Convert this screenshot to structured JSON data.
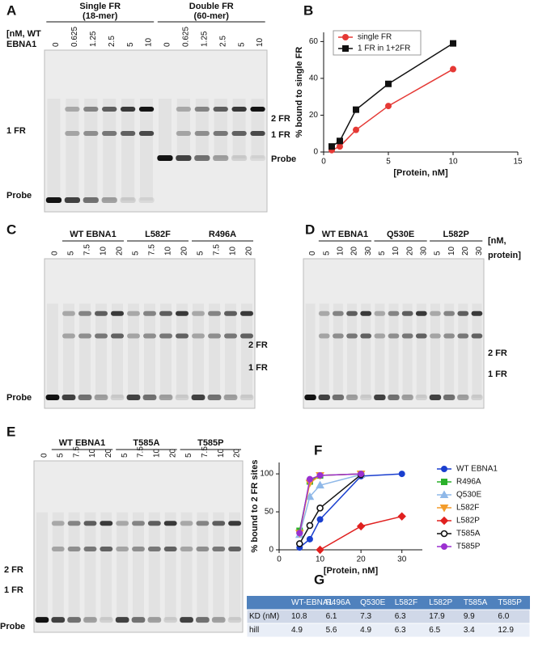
{
  "chart_data": [
    {
      "type": "line",
      "label": "B",
      "x_label": "[Protein, nM]",
      "y_label": "% bound to single FR",
      "xlim": [
        0,
        15
      ],
      "xticks": [
        0,
        5,
        10,
        15
      ],
      "ylim": [
        0,
        65
      ],
      "yticks": [
        0,
        20,
        40,
        60
      ],
      "legend": "upper left",
      "series": [
        {
          "name": "single FR",
          "color": "#e53935",
          "marker": "circle",
          "x": [
            0.625,
            1.25,
            2.5,
            5,
            10
          ],
          "values": [
            1,
            3,
            12,
            25,
            45
          ]
        },
        {
          "name": "1 FR in 1+2FR",
          "color": "#111111",
          "marker": "square",
          "x": [
            0.625,
            1.25,
            2.5,
            5,
            10
          ],
          "values": [
            3,
            6,
            23,
            37,
            59
          ]
        }
      ]
    },
    {
      "type": "line",
      "label": "F",
      "x_label": "[Protein, nM]",
      "y_label": "% bound to 2 FR sites",
      "xlim": [
        0,
        35
      ],
      "xticks": [
        0,
        10,
        20,
        30
      ],
      "ylim": [
        0,
        115
      ],
      "yticks": [
        0,
        50,
        100
      ],
      "legend": "outside right",
      "series": [
        {
          "name": "WT EBNA1",
          "color": "#1a3fcf",
          "marker": "circle",
          "x": [
            5,
            7.5,
            10,
            20,
            30
          ],
          "values": [
            3,
            14,
            40,
            97,
            100
          ]
        },
        {
          "name": "R496A",
          "color": "#2bb12b",
          "marker": "square",
          "x": [
            5,
            7.5,
            10,
            20
          ],
          "values": [
            25,
            90,
            98,
            100
          ]
        },
        {
          "name": "Q530E",
          "color": "#8fb8e8",
          "marker": "triangle",
          "x": [
            5,
            7.5,
            10,
            20
          ],
          "values": [
            20,
            70,
            85,
            99
          ]
        },
        {
          "name": "L582F",
          "color": "#f39c2b",
          "marker": "triangle-down",
          "x": [
            5,
            7.5,
            10,
            20
          ],
          "values": [
            22,
            88,
            98,
            100
          ]
        },
        {
          "name": "L582P",
          "color": "#e0201f",
          "marker": "diamond",
          "x": [
            10,
            20,
            30
          ],
          "values": [
            0,
            31,
            44
          ]
        },
        {
          "name": "T585A",
          "color": "#111111",
          "marker": "open-circle",
          "x": [
            5,
            7.5,
            10,
            20
          ],
          "values": [
            8,
            32,
            55,
            99
          ]
        },
        {
          "name": "T585P",
          "color": "#9b30d0",
          "marker": "circle",
          "x": [
            5,
            7.5,
            10,
            20
          ],
          "values": [
            22,
            93,
            98,
            100
          ]
        }
      ]
    }
  ],
  "gels": [
    {
      "label": "A",
      "groups": [
        {
          "name": "Single FR",
          "note": "(18-mer)"
        },
        {
          "name": "Double FR",
          "note": "(60-mer)"
        }
      ],
      "unit": [
        "[nM, WT",
        "EBNA1"
      ],
      "lanes": [
        "0",
        "0.625",
        "1.25",
        "2.5",
        "5",
        "10",
        "0",
        "0.625",
        "1.25",
        "2.5",
        "5",
        "10"
      ],
      "bands": [
        "1 FR",
        "Probe",
        "2 FR",
        "1 FR",
        "Probe"
      ]
    },
    {
      "label": "C",
      "groups": [
        {
          "name": "WT EBNA1"
        },
        {
          "name": "L582F"
        },
        {
          "name": "R496A"
        }
      ],
      "lanes": [
        "0",
        "5",
        "7.5",
        "10",
        "20",
        "5",
        "7.5",
        "10",
        "20",
        "5",
        "7.5",
        "10",
        "20"
      ],
      "bands": [
        "2 FR",
        "1 FR",
        "Probe"
      ]
    },
    {
      "label": "D",
      "groups": [
        {
          "name": "WT EBNA1"
        },
        {
          "name": "Q530E"
        },
        {
          "name": "L582P"
        }
      ],
      "unit": [
        "[nM,",
        "protein]"
      ],
      "lanes": [
        "0",
        "5",
        "10",
        "20",
        "30",
        "5",
        "10",
        "20",
        "30",
        "5",
        "10",
        "20",
        "30"
      ],
      "bands": [
        "2 FR",
        "1 FR"
      ]
    },
    {
      "label": "E",
      "groups": [
        {
          "name": "WT EBNA1"
        },
        {
          "name": "T585A"
        },
        {
          "name": "T585P"
        }
      ],
      "lanes": [
        "0",
        "5",
        "7.5",
        "10",
        "20",
        "5",
        "7.5",
        "10",
        "20",
        "5",
        "7.5",
        "10",
        "20"
      ],
      "bands": [
        "2 FR",
        "1 FR",
        "Probe"
      ]
    }
  ],
  "table": {
    "label": "G",
    "header": [
      "WT-EBNA1",
      "R496A",
      "Q530E",
      "L582F",
      "L582P",
      "T585A",
      "T585P"
    ],
    "rows": [
      [
        "KD (nM)",
        "10.8",
        "6.1",
        "7.3",
        "6.3",
        "17.9",
        "9.9",
        "6.0"
      ],
      [
        "hill",
        "4.9",
        "5.6",
        "4.9",
        "6.3",
        "6.5",
        "3.4",
        "12.9"
      ]
    ]
  }
}
